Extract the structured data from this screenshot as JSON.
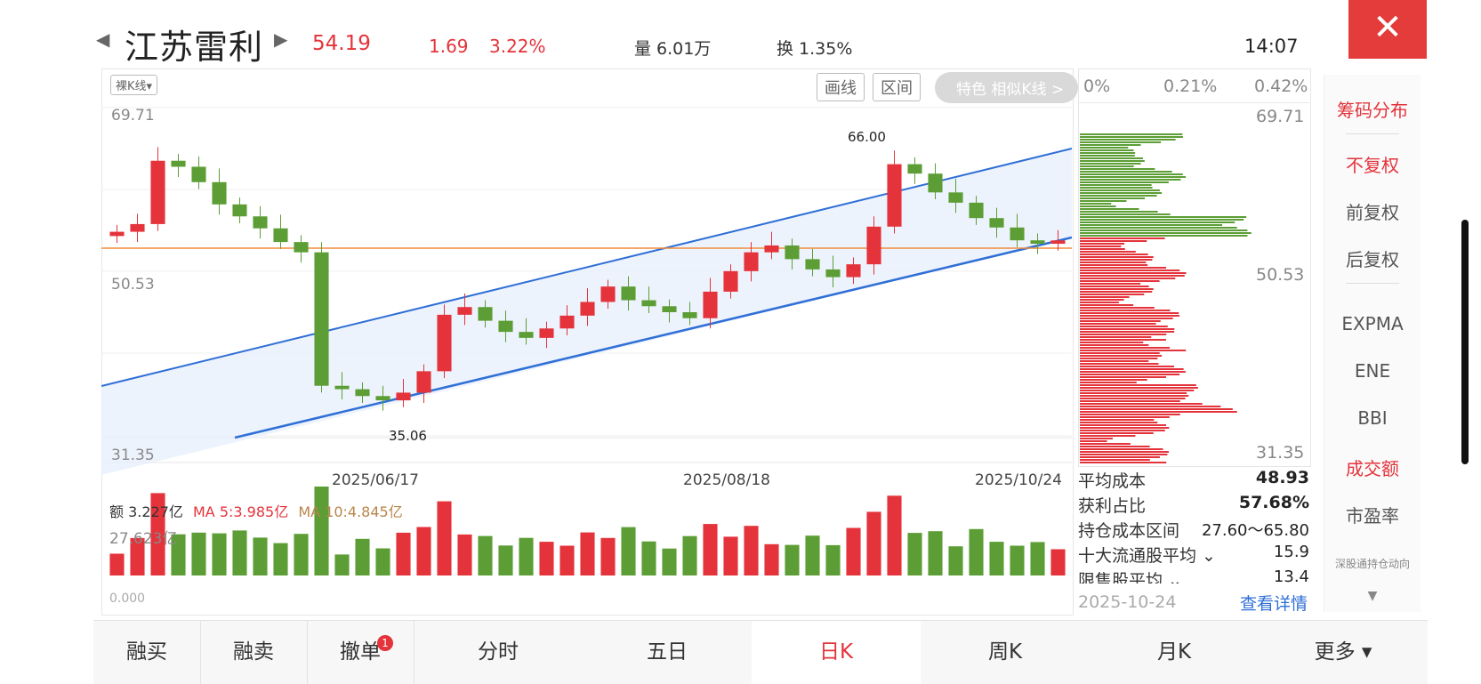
{
  "header": {
    "stock_name": "江苏雷利",
    "price": "54.19",
    "change": "1.69",
    "change_pct": "3.22%",
    "volume": "量 6.01万",
    "turnover": "换 1.35%",
    "time": "14:07",
    "close_label": "✕"
  },
  "toolbar": {
    "kline_type": "裸K线▾",
    "draw_label": "画线",
    "range_label": "区间",
    "feature_label": "特色 相似K线 >"
  },
  "kline": {
    "y_top": "69.71",
    "y_mid": "50.53",
    "y_bot": "31.35",
    "high_label": "66.00",
    "low_label": "35.06",
    "dates": [
      "2025/06/17",
      "2025/08/18",
      "2025/10/24"
    ]
  },
  "volume_panel": {
    "legend_amount": "额 3.227亿",
    "legend_ma5": "MA 5:3.985亿",
    "legend_ma10": "MA 10:4.845亿",
    "max_label": "27.623亿",
    "zero_label": "0.000"
  },
  "chip": {
    "pct_axis": [
      "0%",
      "0.21%",
      "0.42%"
    ],
    "y_top": "69.71",
    "y_mid": "50.53",
    "y_bot": "31.35",
    "stats": [
      {
        "label": "平均成本",
        "value": "48.93"
      },
      {
        "label": "获利占比",
        "value": "57.68%"
      },
      {
        "label": "持仓成本区间",
        "value": "27.60～65.80"
      },
      {
        "label": "十大流通股平均 ⌄",
        "value": "15.9"
      },
      {
        "label": "限售股平均 ⌄",
        "value": "13.4"
      }
    ],
    "date": "2025-10-24",
    "detail_link": "查看详情"
  },
  "side_menu": {
    "items": [
      "筹码分布",
      "不复权",
      "前复权",
      "后复权",
      "EXPMA",
      "ENE",
      "BBI",
      "成交额",
      "市盈率",
      "深股通持仓动向"
    ]
  },
  "tabs": [
    "融买",
    "融卖",
    "撤单",
    "分时",
    "五日",
    "日K",
    "周K",
    "月K",
    "更多 ▾"
  ],
  "badge": "1",
  "colors": {
    "up": "#e4333b",
    "down": "#5c9e35",
    "channel": "#2f6fd6",
    "avg_line": "#f28c3b",
    "accent": "#e4333b"
  },
  "chart_data": {
    "type": "candlestick",
    "y_range": [
      31.35,
      69.71
    ],
    "x_tick_labels": [
      "2025/06/17",
      "2025/08/18",
      "2025/10/24"
    ],
    "annotations": [
      "66.00",
      "35.06"
    ],
    "series": [
      {
        "values": [
          55.2,
          56.1,
          63.5,
          62.8,
          61.0,
          58.4,
          57.0,
          55.6,
          54.0,
          52.8,
          37.2,
          36.8,
          36.0,
          35.5,
          36.4,
          38.9,
          45.5,
          46.4,
          44.8,
          43.5,
          42.8,
          43.9,
          45.4,
          47.0,
          48.8,
          47.2,
          46.5,
          45.8,
          45.1,
          48.2,
          50.6,
          52.8,
          53.6,
          52.0,
          50.8,
          49.9,
          51.4,
          55.8,
          63.1,
          62.0,
          59.8,
          58.6,
          56.8,
          55.7,
          54.2,
          53.8,
          54.19
        ]
      }
    ]
  }
}
